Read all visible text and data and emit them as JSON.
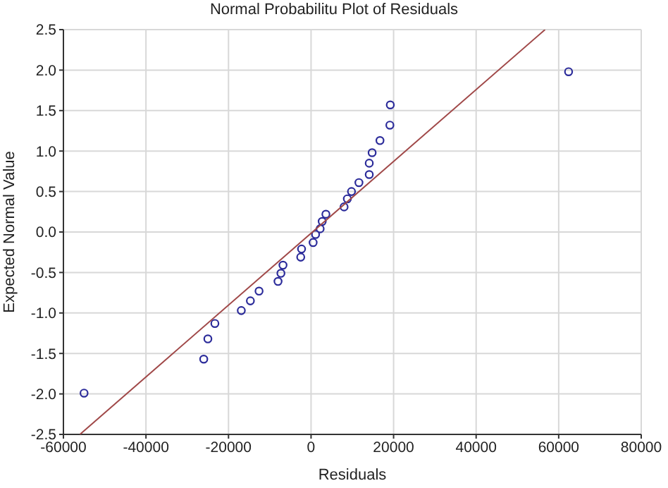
{
  "chart_data": {
    "type": "scatter",
    "title": "Normal Probabilitu Plot of Residuals",
    "xlabel": "Residuals",
    "ylabel": "Expected Normal Value",
    "xlim": [
      -60000,
      80000
    ],
    "xticks": [
      -60000,
      -40000,
      -20000,
      0,
      20000,
      40000,
      60000,
      80000
    ],
    "ylim": [
      -2.5,
      2.5
    ],
    "yticks": [
      {
        "value": -2.5,
        "label": "-2.5"
      },
      {
        "value": -2.0,
        "label": "-2.0"
      },
      {
        "value": -1.5,
        "label": "-1.5"
      },
      {
        "value": -1.0,
        "label": "-1.0"
      },
      {
        "value": -0.5,
        "label": "-0.5"
      },
      {
        "value": 0,
        "label": "0.0"
      },
      {
        "value": 0.5,
        "label": "0.5"
      },
      {
        "value": 1.0,
        "label": "1.0"
      },
      {
        "value": 1.5,
        "label": "1.5"
      },
      {
        "value": 2.0,
        "label": "2.0"
      },
      {
        "value": 2.5,
        "label": "2.5"
      }
    ],
    "grid": true,
    "series": [
      {
        "marker": "circle",
        "color": "#2b2b9a",
        "x": [
          -55000,
          -26000,
          -25000,
          -23300,
          -16900,
          -14700,
          -12600,
          -8000,
          -7300,
          -6800,
          -2500,
          -2300,
          500,
          1100,
          2200,
          2700,
          3600,
          8000,
          8800,
          9800,
          11600,
          14100,
          14100,
          14800,
          16700,
          19100,
          19200,
          62400
        ],
        "values": [
          -1.99,
          -1.57,
          -1.32,
          -1.13,
          -0.97,
          -0.85,
          -0.73,
          -0.61,
          -0.51,
          -0.41,
          -0.31,
          -0.21,
          -0.13,
          -0.03,
          0.04,
          0.13,
          0.22,
          0.31,
          0.41,
          0.5,
          0.61,
          0.71,
          0.85,
          0.98,
          1.13,
          1.32,
          1.57,
          1.98
        ]
      },
      {
        "type": "line",
        "marker": "none",
        "color": "#a04848",
        "x": [
          -56000,
          56700
        ],
        "values": [
          -2.5,
          2.5
        ]
      }
    ]
  }
}
